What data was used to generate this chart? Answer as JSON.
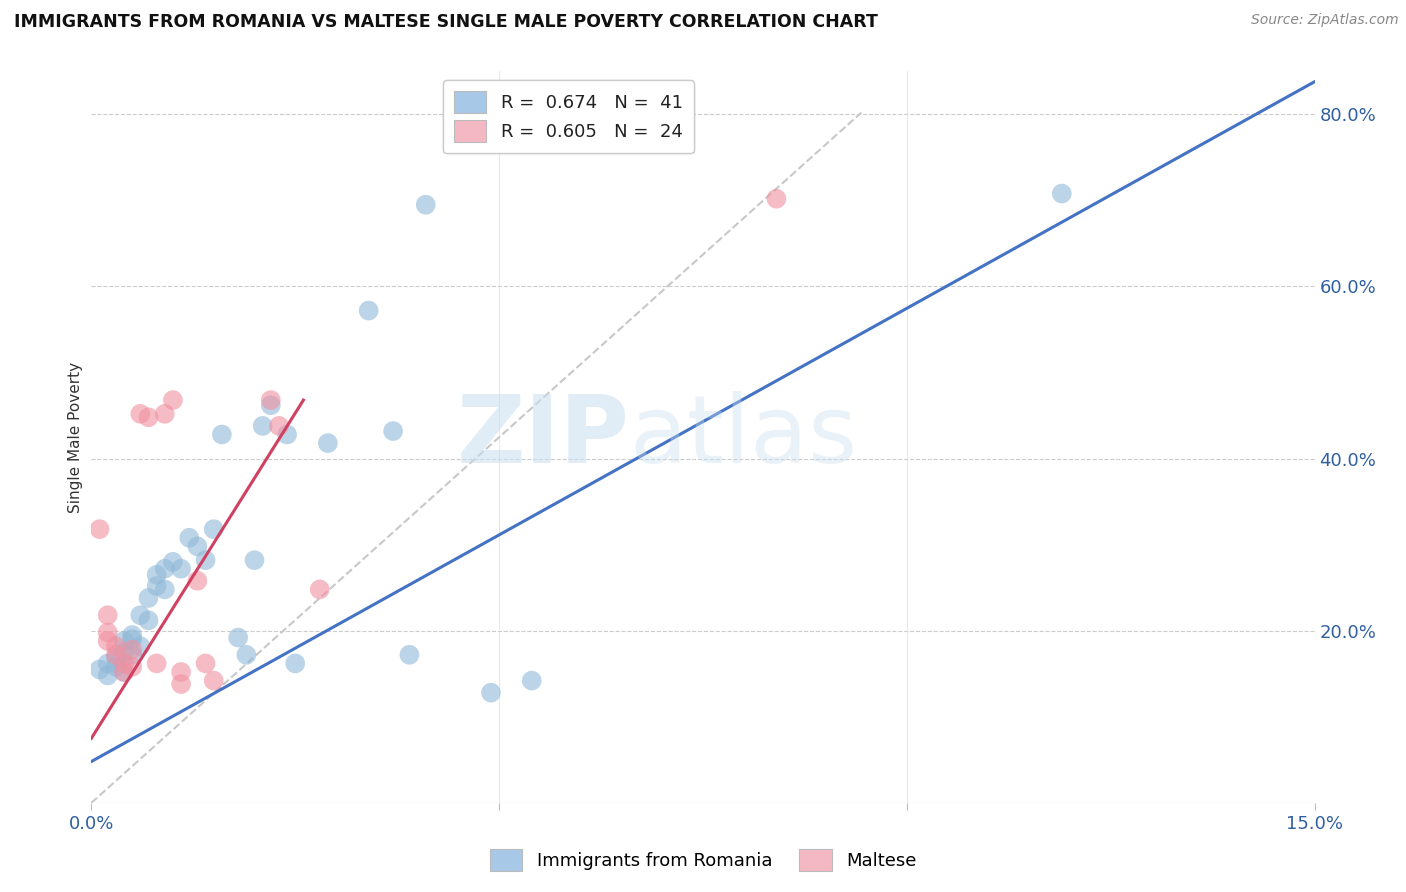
{
  "title": "IMMIGRANTS FROM ROMANIA VS MALTESE SINGLE MALE POVERTY CORRELATION CHART",
  "source": "Source: ZipAtlas.com",
  "ylabel": "Single Male Poverty",
  "xmin": 0.0,
  "xmax": 0.15,
  "ymin": 0.0,
  "ymax": 0.85,
  "yticks": [
    0.0,
    0.2,
    0.4,
    0.6,
    0.8
  ],
  "xticks": [
    0.0,
    0.05,
    0.1,
    0.15
  ],
  "xtick_labels": [
    "0.0%",
    "",
    "",
    "15.0%"
  ],
  "ytick_labels": [
    "",
    "20.0%",
    "40.0%",
    "60.0%",
    "80.0%"
  ],
  "legend_items": [
    {
      "label": "R =  0.674   N =  41",
      "color": "#a8c8e8"
    },
    {
      "label": "R =  0.605   N =  24",
      "color": "#f4b8c4"
    }
  ],
  "legend_bottom": [
    "Immigrants from Romania",
    "Maltese"
  ],
  "blue_color": "#90b8d8",
  "pink_color": "#f090a0",
  "blue_line_color": "#4472c4",
  "pink_line_color": "#d04060",
  "diagonal_color": "#c8c8c8",
  "watermark_zip": "ZIP",
  "watermark_atlas": "atlas",
  "blue_scatter": [
    [
      0.001,
      0.155
    ],
    [
      0.002,
      0.162
    ],
    [
      0.002,
      0.148
    ],
    [
      0.003,
      0.168
    ],
    [
      0.003,
      0.158
    ],
    [
      0.004,
      0.175
    ],
    [
      0.004,
      0.152
    ],
    [
      0.004,
      0.188
    ],
    [
      0.005,
      0.195
    ],
    [
      0.005,
      0.19
    ],
    [
      0.005,
      0.172
    ],
    [
      0.006,
      0.182
    ],
    [
      0.006,
      0.218
    ],
    [
      0.007,
      0.212
    ],
    [
      0.007,
      0.238
    ],
    [
      0.008,
      0.265
    ],
    [
      0.008,
      0.252
    ],
    [
      0.009,
      0.248
    ],
    [
      0.009,
      0.272
    ],
    [
      0.01,
      0.28
    ],
    [
      0.011,
      0.272
    ],
    [
      0.012,
      0.308
    ],
    [
      0.013,
      0.298
    ],
    [
      0.014,
      0.282
    ],
    [
      0.015,
      0.318
    ],
    [
      0.016,
      0.428
    ],
    [
      0.018,
      0.192
    ],
    [
      0.019,
      0.172
    ],
    [
      0.02,
      0.282
    ],
    [
      0.021,
      0.438
    ],
    [
      0.022,
      0.462
    ],
    [
      0.024,
      0.428
    ],
    [
      0.025,
      0.162
    ],
    [
      0.029,
      0.418
    ],
    [
      0.034,
      0.572
    ],
    [
      0.037,
      0.432
    ],
    [
      0.039,
      0.172
    ],
    [
      0.041,
      0.695
    ],
    [
      0.049,
      0.128
    ],
    [
      0.054,
      0.142
    ],
    [
      0.119,
      0.708
    ]
  ],
  "pink_scatter": [
    [
      0.001,
      0.318
    ],
    [
      0.002,
      0.218
    ],
    [
      0.002,
      0.198
    ],
    [
      0.002,
      0.188
    ],
    [
      0.003,
      0.182
    ],
    [
      0.003,
      0.172
    ],
    [
      0.004,
      0.162
    ],
    [
      0.004,
      0.152
    ],
    [
      0.005,
      0.158
    ],
    [
      0.005,
      0.178
    ],
    [
      0.006,
      0.452
    ],
    [
      0.007,
      0.448
    ],
    [
      0.008,
      0.162
    ],
    [
      0.009,
      0.452
    ],
    [
      0.01,
      0.468
    ],
    [
      0.011,
      0.138
    ],
    [
      0.011,
      0.152
    ],
    [
      0.013,
      0.258
    ],
    [
      0.014,
      0.162
    ],
    [
      0.015,
      0.142
    ],
    [
      0.023,
      0.438
    ],
    [
      0.028,
      0.248
    ],
    [
      0.084,
      0.702
    ],
    [
      0.022,
      0.468
    ]
  ],
  "blue_line_x": [
    0.0,
    0.15
  ],
  "blue_line_y": [
    0.048,
    0.838
  ],
  "pink_line_x": [
    0.0,
    0.026
  ],
  "pink_line_y": [
    0.075,
    0.468
  ],
  "diag_line_x": [
    0.0,
    0.0944
  ],
  "diag_line_y": [
    0.0,
    0.802
  ]
}
